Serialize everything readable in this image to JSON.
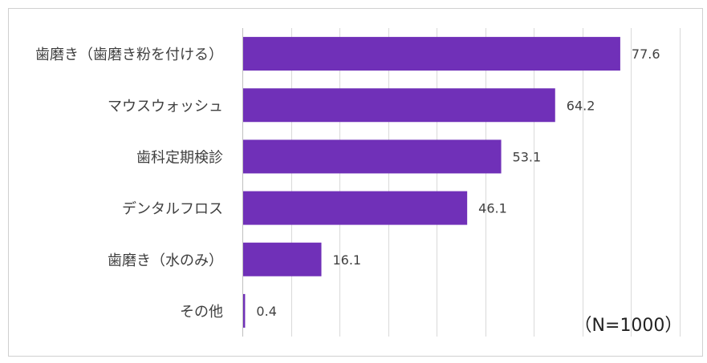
{
  "chart_data": {
    "type": "bar",
    "orientation": "horizontal",
    "categories": [
      "歯磨き（歯磨き粉を付ける）",
      "マウスウォッシュ",
      "歯科定期検診",
      "デンタルフロス",
      "歯磨き（水のみ）",
      "その他"
    ],
    "values": [
      77.6,
      64.2,
      53.1,
      46.1,
      16.1,
      0.4
    ],
    "value_labels": [
      "77.6",
      "64.2",
      "53.1",
      "46.1",
      "16.1",
      "0.4"
    ],
    "annotation": "（N=1000）",
    "xlim": [
      0,
      90
    ],
    "grid": true,
    "legend": "none",
    "bar_color": "#7030b8"
  }
}
